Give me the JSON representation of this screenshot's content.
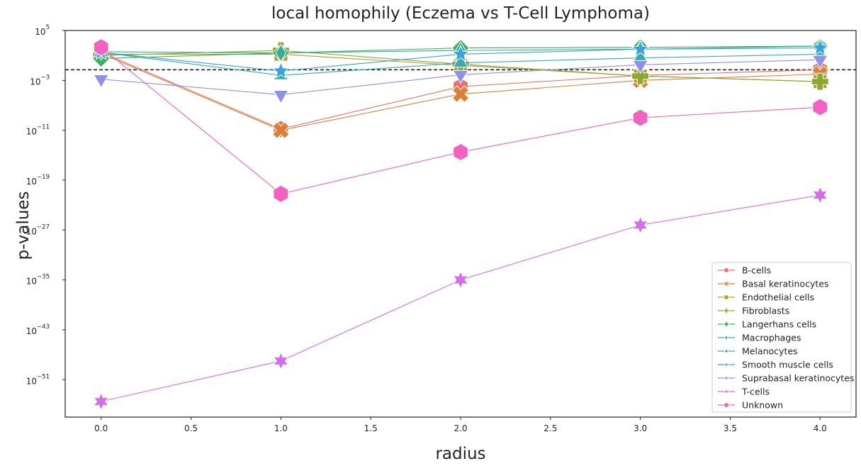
{
  "chart_data": {
    "type": "line",
    "title": "local homophily (Eczema vs T-Cell Lymphoma)",
    "xlabel": "radius",
    "ylabel": "p-values",
    "x": [
      0.0,
      1.0,
      2.0,
      3.0,
      4.0
    ],
    "xlim": [
      -0.2,
      4.2
    ],
    "x_ticks": [
      0.0,
      0.5,
      1.0,
      1.5,
      2.0,
      2.5,
      3.0,
      3.5,
      4.0
    ],
    "x_tick_labels": [
      "0.0",
      "0.5",
      "1.0",
      "1.5",
      "2.0",
      "2.5",
      "3.0",
      "3.5",
      "4.0"
    ],
    "y_scale": "log",
    "ylim_log10": [
      -57,
      5
    ],
    "y_tick_labels": [
      {
        "base": "10",
        "exp": "5"
      },
      {
        "base": "10",
        "exp": "−3"
      },
      {
        "base": "10",
        "exp": "−11"
      },
      {
        "base": "10",
        "exp": "−19"
      },
      {
        "base": "10",
        "exp": "−27"
      },
      {
        "base": "10",
        "exp": "−35"
      },
      {
        "base": "10",
        "exp": "−43"
      },
      {
        "base": "10",
        "exp": "−51"
      }
    ],
    "y_tick_values_log10": [
      5,
      -3,
      -11,
      -19,
      -27,
      -35,
      -43,
      -51
    ],
    "threshold_log10": -1.3,
    "threshold_style": "dashed",
    "grid": false,
    "legend_position": "bottom-right",
    "series": [
      {
        "name": "B-cells",
        "color": "#e8716c",
        "marker": "hexagon",
        "values_log10": [
          1.5,
          -10.8,
          -4.0,
          -2.2,
          -1.3
        ]
      },
      {
        "name": "Basal keratinocytes",
        "color": "#dc8037",
        "marker": "x",
        "values_log10": [
          1.3,
          -11.0,
          -5.2,
          -3.0,
          -2.0
        ]
      },
      {
        "name": "Endothelial cells",
        "color": "#b19c2c",
        "marker": "square",
        "values_log10": [
          1.2,
          1.2,
          -0.6,
          -2.3,
          -3.2
        ]
      },
      {
        "name": "Fibroblasts",
        "color": "#8ca633",
        "marker": "plus",
        "values_log10": [
          1.0,
          1.8,
          -0.4,
          -2.3,
          -3.2
        ]
      },
      {
        "name": "Langerhans cells",
        "color": "#40ae5c",
        "marker": "diamond",
        "values_log10": [
          0.5,
          1.4,
          2.2,
          2.3,
          2.5
        ]
      },
      {
        "name": "Macrophages",
        "color": "#35ae97",
        "marker": "thin-diamond",
        "values_log10": [
          1.6,
          1.4,
          1.8,
          2.0,
          2.5
        ]
      },
      {
        "name": "Melanocytes",
        "color": "#37aab3",
        "marker": "triangle-up",
        "values_log10": [
          1.5,
          -2.2,
          -0.2,
          0.6,
          1.2
        ]
      },
      {
        "name": "Smooth muscle cells",
        "color": "#3aa4d7",
        "marker": "star",
        "values_log10": [
          1.5,
          -1.5,
          1.2,
          2.0,
          2.2
        ]
      },
      {
        "name": "Suprabasal keratinocytes",
        "color": "#8e91e6",
        "marker": "triangle-down",
        "values_log10": [
          -2.8,
          -5.3,
          -2.1,
          -0.5,
          0.3
        ]
      },
      {
        "name": "T-cells",
        "color": "#d36de8",
        "marker": "star6",
        "values_log10": [
          -54.5,
          -48.0,
          -35.0,
          -26.2,
          -21.4
        ]
      },
      {
        "name": "Unknown",
        "color": "#f063c1",
        "marker": "hexagon",
        "values_log10": [
          2.3,
          -21.2,
          -14.5,
          -9.0,
          -7.3
        ]
      }
    ]
  }
}
